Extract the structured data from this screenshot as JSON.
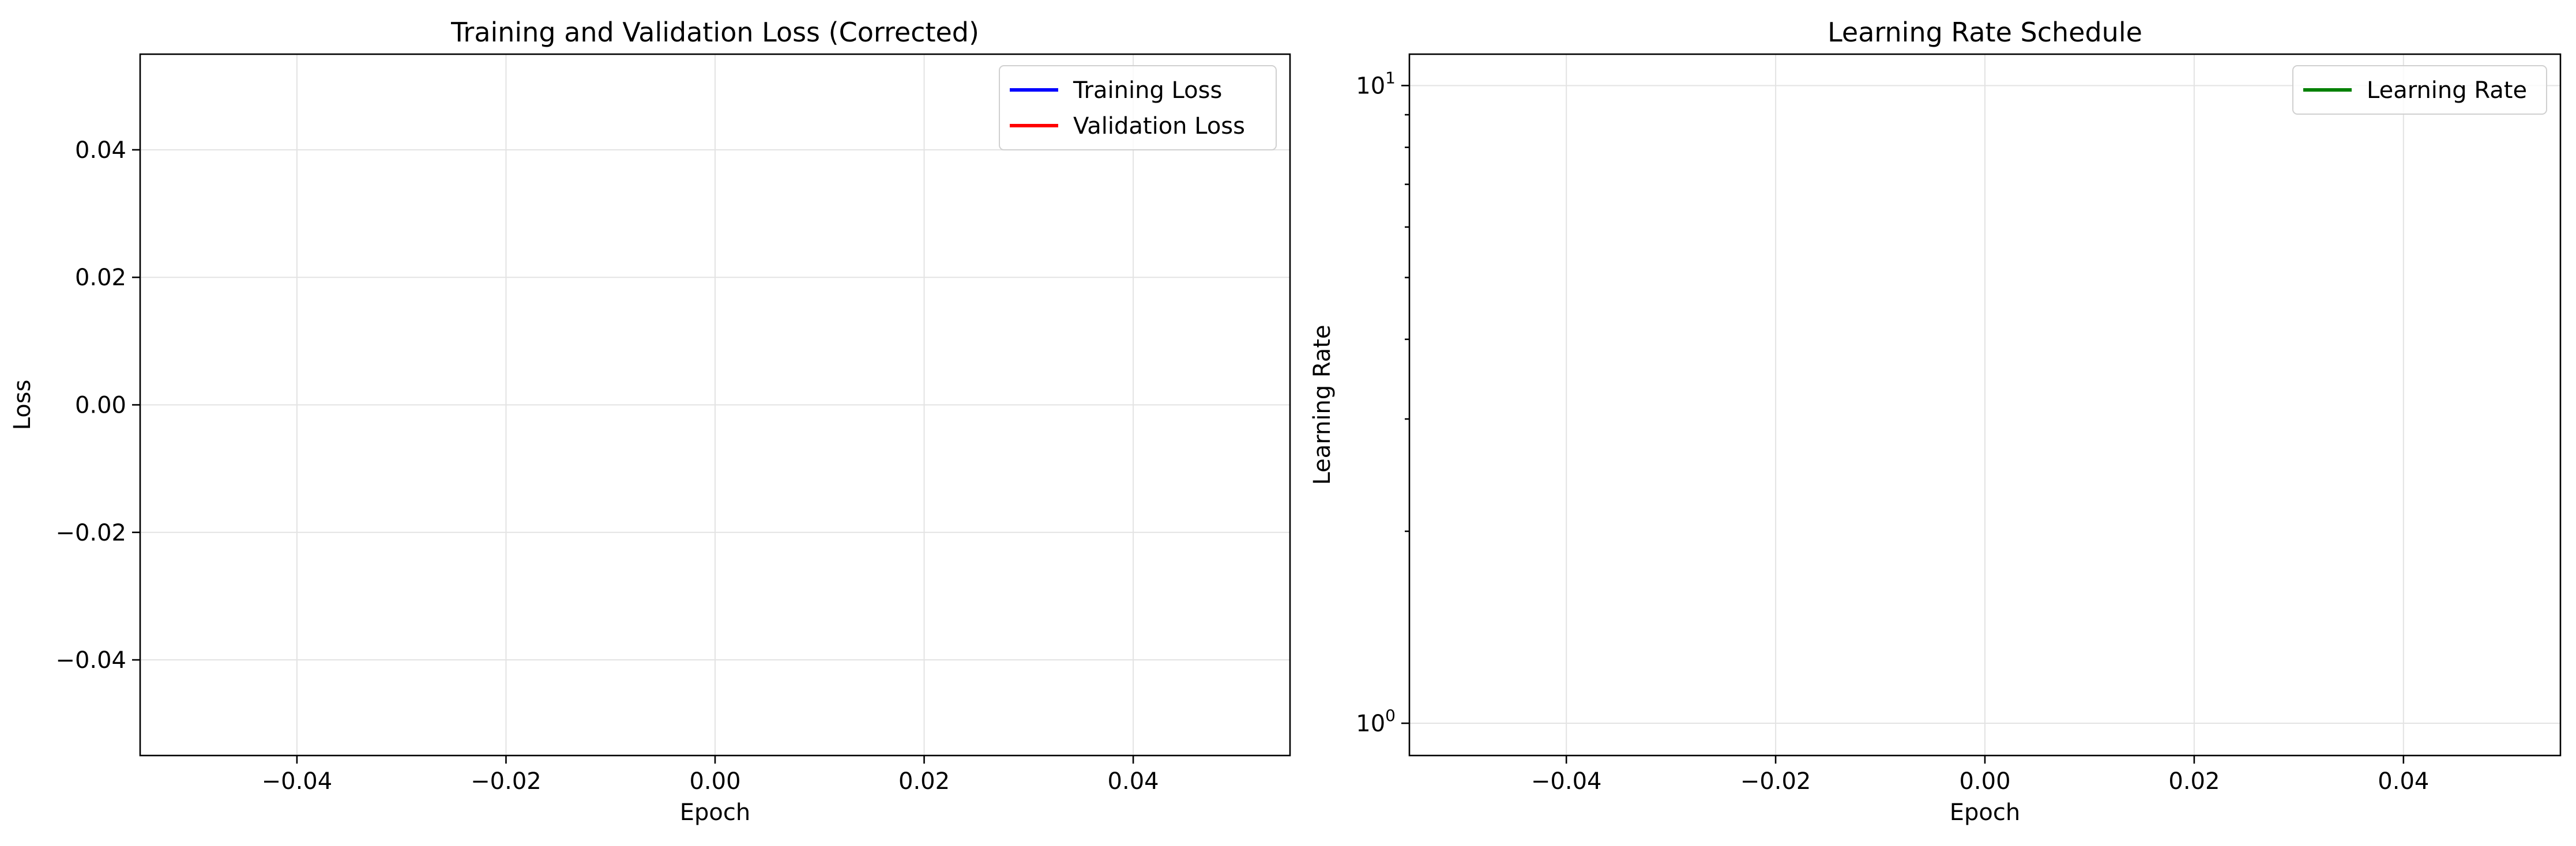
{
  "colors": {
    "training": "#0000ff",
    "validation": "#ff0000",
    "lr": "#008000",
    "grid": "#e3e3e3"
  },
  "chart_data": [
    {
      "type": "line",
      "title": "Training and Validation Loss (Corrected)",
      "xlabel": "Epoch",
      "ylabel": "Loss",
      "xlim": [
        -0.055,
        0.055
      ],
      "ylim": [
        -0.055,
        0.055
      ],
      "x_ticks": [
        -0.04,
        -0.02,
        0.0,
        0.02,
        0.04
      ],
      "x_tick_labels": [
        "−0.04",
        "−0.02",
        "0.00",
        "0.02",
        "0.04"
      ],
      "y_ticks": [
        -0.04,
        -0.02,
        0.0,
        0.02,
        0.04
      ],
      "y_tick_labels": [
        "−0.04",
        "−0.02",
        "0.00",
        "0.02",
        "0.04"
      ],
      "grid": true,
      "legend_position": "top-right",
      "series": [
        {
          "name": "Training Loss",
          "color": "#0000ff",
          "x": [],
          "y": []
        },
        {
          "name": "Validation Loss",
          "color": "#ff0000",
          "x": [],
          "y": []
        }
      ]
    },
    {
      "type": "line",
      "title": "Learning Rate Schedule",
      "xlabel": "Epoch",
      "ylabel": "Learning Rate",
      "yscale": "log",
      "xlim": [
        -0.055,
        0.055
      ],
      "ylim": [
        0.89,
        11.2
      ],
      "x_ticks": [
        -0.04,
        -0.02,
        0.0,
        0.02,
        0.04
      ],
      "x_tick_labels": [
        "−0.04",
        "−0.02",
        "0.00",
        "0.02",
        "0.04"
      ],
      "y_ticks": [
        1,
        10
      ],
      "y_tick_labels": [
        "10^0",
        "10^1"
      ],
      "grid": true,
      "legend_position": "top-right",
      "series": [
        {
          "name": "Learning Rate",
          "color": "#008000",
          "x": [],
          "y": []
        }
      ]
    }
  ]
}
